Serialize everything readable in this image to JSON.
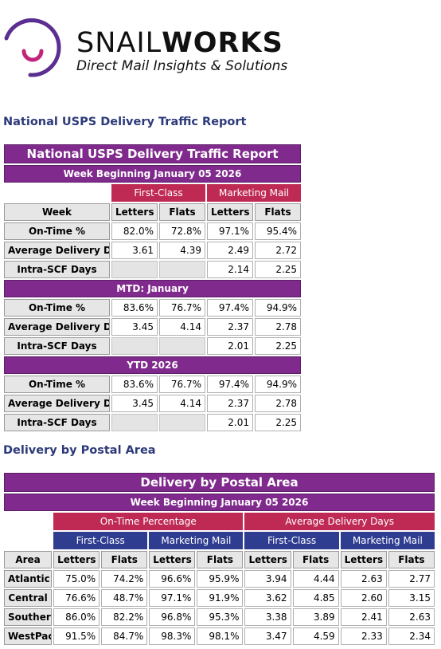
{
  "logo": {
    "word_light": "SNAIL",
    "word_bold": "WORKS",
    "tagline": "Direct Mail Insights & Solutions",
    "colors": {
      "arc_outer": "#5b2e91",
      "arc_inner": "#c0257a"
    }
  },
  "section1_title": "National USPS Delivery Traffic Report",
  "national": {
    "title": "National USPS Delivery Traffic Report",
    "subtitle": "Week Beginning January 05 2026",
    "groups": [
      "First-Class",
      "Marketing Mail"
    ],
    "headers": [
      "Week",
      "Letters",
      "Flats",
      "Letters",
      "Flats"
    ],
    "blocks": [
      {
        "label": "",
        "rows": [
          {
            "name": "On-Time %",
            "values": [
              "82.0%",
              "72.8%",
              "97.1%",
              "95.4%"
            ]
          },
          {
            "name": "Average Delivery Days",
            "values": [
              "3.61",
              "4.39",
              "2.49",
              "2.72"
            ]
          },
          {
            "name": "Intra-SCF Days",
            "values": [
              "",
              "",
              "2.14",
              "2.25"
            ]
          }
        ]
      },
      {
        "label": "MTD: January",
        "rows": [
          {
            "name": "On-Time %",
            "values": [
              "83.6%",
              "76.7%",
              "97.4%",
              "94.9%"
            ]
          },
          {
            "name": "Average Delivery Days",
            "values": [
              "3.45",
              "4.14",
              "2.37",
              "2.78"
            ]
          },
          {
            "name": "Intra-SCF Days",
            "values": [
              "",
              "",
              "2.01",
              "2.25"
            ]
          }
        ]
      },
      {
        "label": "YTD 2026",
        "rows": [
          {
            "name": "On-Time %",
            "values": [
              "83.6%",
              "76.7%",
              "97.4%",
              "94.9%"
            ]
          },
          {
            "name": "Average Delivery Days",
            "values": [
              "3.45",
              "4.14",
              "2.37",
              "2.78"
            ]
          },
          {
            "name": "Intra-SCF Days",
            "values": [
              "",
              "",
              "2.01",
              "2.25"
            ]
          }
        ]
      }
    ]
  },
  "section2_title": "Delivery by Postal Area",
  "postal": {
    "title": "Delivery by Postal Area",
    "subtitle": "Week Beginning January 05 2026",
    "supergroups": [
      "On-Time Percentage",
      "Average Delivery Days"
    ],
    "groups": [
      "First-Class",
      "Marketing Mail",
      "First-Class",
      "Marketing Mail"
    ],
    "headers": [
      "Area",
      "Letters",
      "Flats",
      "Letters",
      "Flats",
      "Letters",
      "Flats",
      "Letters",
      "Flats"
    ],
    "rows": [
      {
        "area": "Atlantic",
        "values": [
          "75.0%",
          "74.2%",
          "96.6%",
          "95.9%",
          "3.94",
          "4.44",
          "2.63",
          "2.77"
        ]
      },
      {
        "area": "Central",
        "values": [
          "76.6%",
          "48.7%",
          "97.1%",
          "91.9%",
          "3.62",
          "4.85",
          "2.60",
          "3.15"
        ]
      },
      {
        "area": "Southern",
        "values": [
          "86.0%",
          "82.2%",
          "96.8%",
          "95.3%",
          "3.38",
          "3.89",
          "2.41",
          "2.63"
        ]
      },
      {
        "area": "WestPac",
        "values": [
          "91.5%",
          "84.7%",
          "98.3%",
          "98.1%",
          "3.47",
          "4.59",
          "2.33",
          "2.34"
        ]
      }
    ]
  },
  "colors": {
    "purple": "#7f2a8c",
    "crimson": "#bf2a54",
    "navy": "#2f3d91",
    "title_text": "#2d3a7a"
  }
}
